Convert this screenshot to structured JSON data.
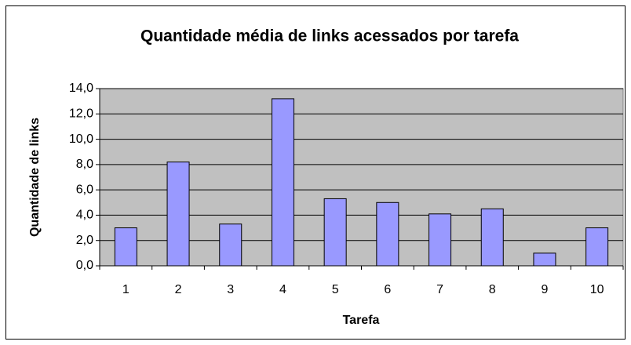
{
  "chart_data": {
    "type": "bar",
    "title": "Quantidade média de links acessados por tarefa",
    "x_label": "Tarefa",
    "y_label": "Quantidade de links",
    "categories": [
      "1",
      "2",
      "3",
      "4",
      "5",
      "6",
      "7",
      "8",
      "9",
      "10"
    ],
    "values": [
      3.0,
      8.2,
      3.3,
      13.2,
      5.3,
      5.0,
      4.1,
      4.5,
      1.0,
      3.0
    ],
    "color": "#9999ff",
    "ylim": [
      0,
      14
    ],
    "yticks": [
      {
        "value": 0,
        "label": "0,0"
      },
      {
        "value": 2,
        "label": "2,0"
      },
      {
        "value": 4,
        "label": "4,0"
      },
      {
        "value": 6,
        "label": "6,0"
      },
      {
        "value": 8,
        "label": "8,0"
      },
      {
        "value": 10,
        "label": "10,0"
      },
      {
        "value": 12,
        "label": "12,0"
      },
      {
        "value": 14,
        "label": "14,0"
      }
    ],
    "grid": true
  }
}
